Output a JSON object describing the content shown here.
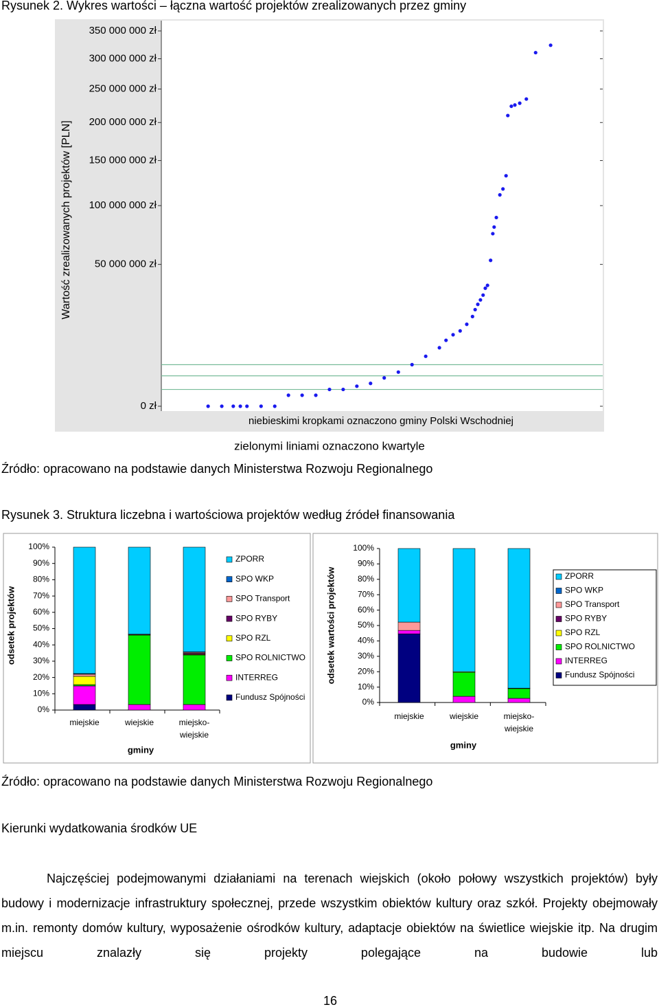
{
  "figure_2": {
    "caption": "Rysunek 2. Wykres wartości – łączna wartość projektów zrealizowanych przez gminy"
  },
  "source_1": "Źródło: opracowano na podstawie danych Ministerstwa Rozwoju Regionalnego",
  "figure_3": {
    "caption": "Rysunek 3. Struktura liczebna i wartościowa projektów według źródeł finansowania"
  },
  "source_2": "Źródło: opracowano na podstawie danych Ministerstwa Rozwoju Regionalnego",
  "heading": "Kierunki wydatkowania środków UE",
  "paragraph": "Najczęściej podejmowanymi działaniami na terenach wiejskich (około połowy wszystkich projektów) były budowy i modernizacje infrastruktury społecznej, przede wszystkim obiektów kultury oraz szkół. Projekty obejmowały m.in. remonty domów kultury, wyposażenie ośrodków kultury, adaptacje obiektów na świetlice wiejskie itp. Na drugim miejscu znalazły się projekty polegające na budowie lub",
  "page_number": "16",
  "chart_data": [
    {
      "type": "scatter",
      "y_label": "Wartość zrealizowanych projektów [PLN]",
      "annotations": [
        "niebieskimi kropkami oznaczono gminy Polski Wschodniej",
        "zielonymi liniami oznaczono kwartyle"
      ],
      "color": "#1a1aee",
      "quartile_color": "#77bb99",
      "yscale": "sqrt",
      "xlim": [
        0,
        100
      ],
      "ylim": [
        0,
        350000000
      ],
      "yticks": [
        {
          "value": 0,
          "label": "0 zł"
        },
        {
          "value": 50000000,
          "label": "50 000 000 zł"
        },
        {
          "value": 100000000,
          "label": "100 000 000 zł"
        },
        {
          "value": 150000000,
          "label": "150 000 000 zł"
        },
        {
          "value": 200000000,
          "label": "200 000 000 zł"
        },
        {
          "value": 250000000,
          "label": "250 000 000 zł"
        },
        {
          "value": 300000000,
          "label": "300 000 000 zł"
        },
        {
          "value": 350000000,
          "label": "350 000 000 zł"
        }
      ],
      "quartiles": [
        700000,
        2300000,
        4300000
      ],
      "x": [
        10.6,
        13.7,
        16.3,
        17.9,
        19.4,
        22.6,
        25.7,
        28.8,
        31.9,
        35.0,
        38.1,
        41.2,
        44.3,
        47.4,
        50.5,
        53.7,
        56.8,
        59.9,
        63.0,
        64.5,
        66.1,
        67.7,
        69.2,
        70.5,
        71.1,
        71.7,
        72.3,
        72.9,
        73.4,
        73.9,
        74.6,
        75.1,
        75.4,
        75.9,
        76.7,
        77.4,
        78.1,
        78.5,
        79.3,
        80.1,
        81.2,
        82.7,
        84.8,
        88.2
      ],
      "values": [
        0,
        0,
        0,
        0,
        0,
        0,
        0,
        300000,
        300000,
        300000,
        700000,
        700000,
        1000000,
        1300000,
        2000000,
        2900000,
        4300000,
        6200000,
        8500000,
        10800000,
        12700000,
        14100000,
        16700000,
        20000000,
        23200000,
        25800000,
        28100000,
        30700000,
        34600000,
        36300000,
        52900000,
        74000000,
        79800000,
        88500000,
        111000000,
        117300000,
        132000000,
        210000000,
        223600000,
        225500000,
        228200000,
        234500000,
        310700000,
        323800000
      ]
    },
    {
      "type": "stacked_bar",
      "y_label": "odsetek projektów",
      "x_label": "gminy",
      "categories": [
        "miejskie",
        "wiejskie",
        "miejsko-wiejskie"
      ],
      "ylim": [
        0,
        100
      ],
      "yticks": [
        {
          "value": 0,
          "label": "0%"
        },
        {
          "value": 10,
          "label": "10%"
        },
        {
          "value": 20,
          "label": "20%"
        },
        {
          "value": 30,
          "label": "30%"
        },
        {
          "value": 40,
          "label": "40%"
        },
        {
          "value": 50,
          "label": "50%"
        },
        {
          "value": 60,
          "label": "60%"
        },
        {
          "value": 70,
          "label": "70%"
        },
        {
          "value": 80,
          "label": "80%"
        },
        {
          "value": 90,
          "label": "90%"
        },
        {
          "value": 100,
          "label": "100%"
        }
      ],
      "series": [
        {
          "name": "ZPORR",
          "color": "#00ccff",
          "values": [
            77.6,
            53.4,
            64.2
          ]
        },
        {
          "name": "SPO WKP",
          "color": "#0066cc",
          "values": [
            0.4,
            0,
            0.4
          ]
        },
        {
          "name": "SPO Transport",
          "color": "#ff9999",
          "values": [
            1.3,
            0.4,
            0.6
          ]
        },
        {
          "name": "SPO RYBY",
          "color": "#660066",
          "values": [
            0,
            0,
            0.6
          ]
        },
        {
          "name": "SPO RZL",
          "color": "#ffff00",
          "values": [
            5.1,
            0.2,
            0.4
          ]
        },
        {
          "name": "SPO ROLNICTWO",
          "color": "#00ee00",
          "values": [
            0.8,
            42.6,
            30.4
          ]
        },
        {
          "name": "INTERREG",
          "color": "#ff00ff",
          "values": [
            11.4,
            3.4,
            3.4
          ]
        },
        {
          "name": "Fundusz Spójności",
          "color": "#000080",
          "values": [
            3.4,
            0,
            0
          ]
        }
      ]
    },
    {
      "type": "stacked_bar",
      "y_label": "odsetek wartości projektów",
      "x_label": "gminy",
      "categories": [
        "miejskie",
        "wiejskie",
        "miejsko-wiejskie"
      ],
      "ylim": [
        0,
        100
      ],
      "yticks": [
        {
          "value": 0,
          "label": "0%"
        },
        {
          "value": 10,
          "label": "10%"
        },
        {
          "value": 20,
          "label": "20%"
        },
        {
          "value": 30,
          "label": "30%"
        },
        {
          "value": 40,
          "label": "40%"
        },
        {
          "value": 50,
          "label": "50%"
        },
        {
          "value": 60,
          "label": "60%"
        },
        {
          "value": 70,
          "label": "70%"
        },
        {
          "value": 80,
          "label": "80%"
        },
        {
          "value": 90,
          "label": "90%"
        },
        {
          "value": 100,
          "label": "100%"
        }
      ],
      "series": [
        {
          "name": "ZPORR",
          "color": "#00ccff",
          "values": [
            47.8,
            80.0,
            90.7
          ]
        },
        {
          "name": "SPO WKP",
          "color": "#0066cc",
          "values": [
            0,
            0,
            0
          ]
        },
        {
          "name": "SPO Transport",
          "color": "#ff9999",
          "values": [
            5.4,
            0,
            0
          ]
        },
        {
          "name": "SPO RYBY",
          "color": "#660066",
          "values": [
            0,
            0,
            0
          ]
        },
        {
          "name": "SPO RZL",
          "color": "#ffff00",
          "values": [
            0,
            0.4,
            0.3
          ]
        },
        {
          "name": "SPO ROLNICTWO",
          "color": "#00ee00",
          "values": [
            0,
            15.6,
            6.3
          ]
        },
        {
          "name": "INTERREG",
          "color": "#ff00ff",
          "values": [
            2.2,
            4.0,
            2.7
          ]
        },
        {
          "name": "Fundusz Spójności",
          "color": "#000080",
          "values": [
            44.6,
            0,
            0
          ]
        }
      ]
    }
  ]
}
